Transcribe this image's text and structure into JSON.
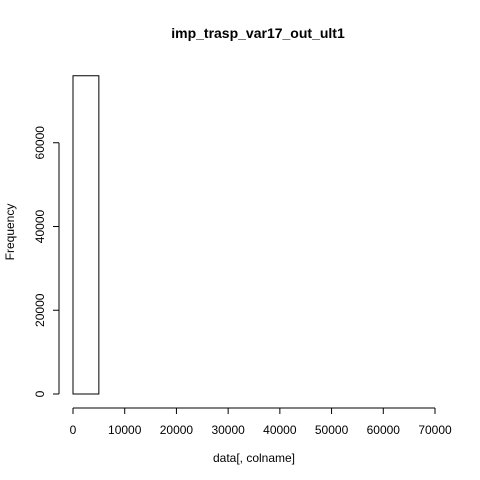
{
  "chart_data": {
    "type": "bar",
    "title": "imp_trasp_var17_out_ult1",
    "xlabel": "data[, colname]",
    "ylabel": "Frequency",
    "xlim": [
      0,
      70000
    ],
    "ylim": [
      0,
      76000
    ],
    "grid": false,
    "bin_width": 5000,
    "bins": [
      {
        "x_start": 0,
        "x_end": 5000,
        "count": 76000
      },
      {
        "x_start": 5000,
        "x_end": 10000,
        "count": 0
      },
      {
        "x_start": 10000,
        "x_end": 15000,
        "count": 0
      },
      {
        "x_start": 15000,
        "x_end": 20000,
        "count": 0
      },
      {
        "x_start": 20000,
        "x_end": 25000,
        "count": 0
      },
      {
        "x_start": 25000,
        "x_end": 30000,
        "count": 0
      },
      {
        "x_start": 30000,
        "x_end": 35000,
        "count": 0
      },
      {
        "x_start": 35000,
        "x_end": 40000,
        "count": 0
      },
      {
        "x_start": 40000,
        "x_end": 45000,
        "count": 0
      },
      {
        "x_start": 45000,
        "x_end": 50000,
        "count": 0
      },
      {
        "x_start": 50000,
        "x_end": 55000,
        "count": 0
      },
      {
        "x_start": 55000,
        "x_end": 60000,
        "count": 0
      },
      {
        "x_start": 60000,
        "x_end": 65000,
        "count": 0
      },
      {
        "x_start": 65000,
        "x_end": 70000,
        "count": 0
      }
    ],
    "x_ticks": [
      0,
      10000,
      20000,
      30000,
      40000,
      50000,
      60000,
      70000
    ],
    "x_tick_labels": [
      "0",
      "10000",
      "20000",
      "30000",
      "40000",
      "50000",
      "60000",
      "70000"
    ],
    "y_ticks": [
      0,
      20000,
      40000,
      60000
    ],
    "y_tick_labels": [
      "0",
      "20000",
      "40000",
      "60000"
    ],
    "colors": {
      "bar_fill": "#ffffff",
      "bar_stroke": "#000000",
      "axis": "#000000",
      "text": "#000000"
    }
  }
}
